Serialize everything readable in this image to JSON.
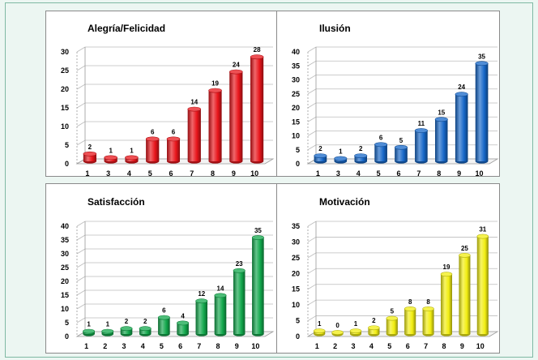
{
  "chart_data": [
    {
      "type": "bar",
      "title": "Alegría/Felicidad",
      "categories": [
        "1",
        "3",
        "4",
        "5",
        "6",
        "7",
        "8",
        "9",
        "10"
      ],
      "values": [
        2,
        1,
        1,
        6,
        6,
        14,
        19,
        24,
        28
      ],
      "ylim": [
        0,
        30
      ],
      "yticks": [
        "0",
        "5",
        "10",
        "15",
        "20",
        "25",
        "30"
      ],
      "color": "#e8151b",
      "grid": true,
      "xlabel": "",
      "ylabel": ""
    },
    {
      "type": "bar",
      "title": "Ilusión",
      "categories": [
        "1",
        "3",
        "4",
        "5",
        "6",
        "7",
        "8",
        "9",
        "10"
      ],
      "values": [
        2,
        1,
        2,
        6,
        5,
        11,
        15,
        24,
        35
      ],
      "ylim": [
        0,
        40
      ],
      "yticks": [
        "0",
        "5",
        "10",
        "15",
        "20",
        "25",
        "30",
        "35",
        "40"
      ],
      "color": "#1667c8",
      "grid": true,
      "xlabel": "",
      "ylabel": ""
    },
    {
      "type": "bar",
      "title": "Satisfacción",
      "categories": [
        "1",
        "2",
        "3",
        "4",
        "5",
        "6",
        "7",
        "8",
        "9",
        "10"
      ],
      "values": [
        1,
        1,
        2,
        2,
        6,
        4,
        12,
        14,
        23,
        35
      ],
      "ylim": [
        0,
        40
      ],
      "yticks": [
        "0",
        "5",
        "10",
        "15",
        "20",
        "25",
        "30",
        "35",
        "40"
      ],
      "color": "#12a84c",
      "grid": true,
      "xlabel": "",
      "ylabel": ""
    },
    {
      "type": "bar",
      "title": "Motivación",
      "categories": [
        "1",
        "2",
        "3",
        "4",
        "5",
        "6",
        "7",
        "8",
        "9",
        "10"
      ],
      "values": [
        1,
        0,
        1,
        2,
        5,
        8,
        8,
        19,
        25,
        31
      ],
      "ylim": [
        0,
        35
      ],
      "yticks": [
        "0",
        "5",
        "10",
        "15",
        "20",
        "25",
        "30",
        "35"
      ],
      "color": "#f2ee12",
      "grid": true,
      "xlabel": "",
      "ylabel": ""
    }
  ]
}
